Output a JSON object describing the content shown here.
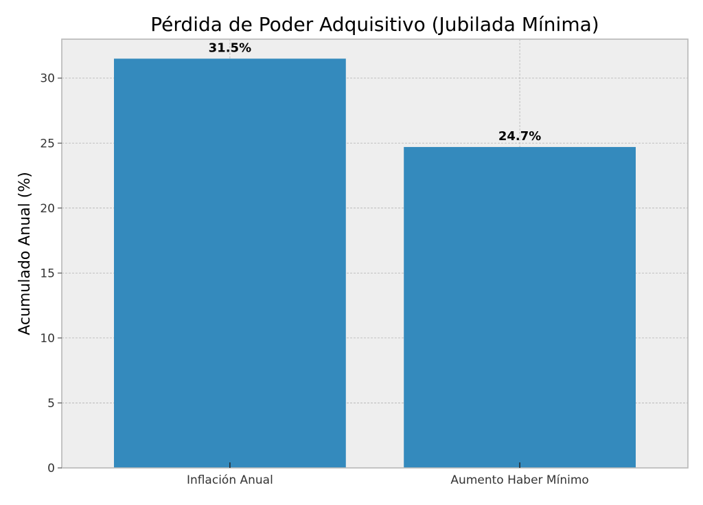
{
  "chart_data": {
    "type": "bar",
    "title": "Pérdida de Poder Adquisitivo (Jubilada Mínima)",
    "xlabel": "",
    "ylabel": "Acumulado Anual (%)",
    "categories": [
      "Inflación Anual",
      "Aumento Haber Mínimo"
    ],
    "values": [
      31.5,
      24.7
    ],
    "value_labels": [
      "31.5%",
      "24.7%"
    ],
    "ylim": [
      0,
      33
    ],
    "yticks": [
      0,
      5,
      10,
      15,
      20,
      25,
      30
    ],
    "grid": true,
    "bar_color": "#348ABD",
    "plot_background": "#EEEEEE"
  }
}
